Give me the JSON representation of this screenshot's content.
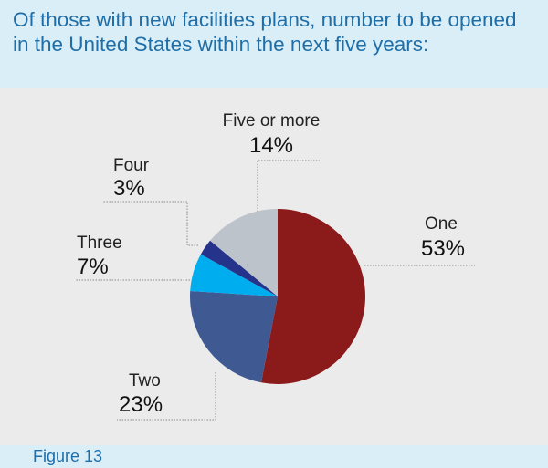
{
  "title": "Of those with new facilities plans, number to be opened in the United States within the next five years:",
  "figure_label": "Figure 13",
  "chart_data": {
    "type": "pie",
    "title": "Of those with new facilities plans, number to be opened in the United States within the next five years:",
    "slices": [
      {
        "label": "One",
        "value": 53,
        "display": "53%",
        "color": "#8b1a1a"
      },
      {
        "label": "Two",
        "value": 23,
        "display": "23%",
        "color": "#3f5a92"
      },
      {
        "label": "Three",
        "value": 7,
        "display": "7%",
        "color": "#00aeef"
      },
      {
        "label": "Four",
        "value": 3,
        "display": "3%",
        "color": "#25338a"
      },
      {
        "label": "Five or more",
        "value": 14,
        "display": "14%",
        "color": "#bcc3cb"
      }
    ],
    "start_angle": "12 o'clock",
    "direction": "clockwise"
  }
}
